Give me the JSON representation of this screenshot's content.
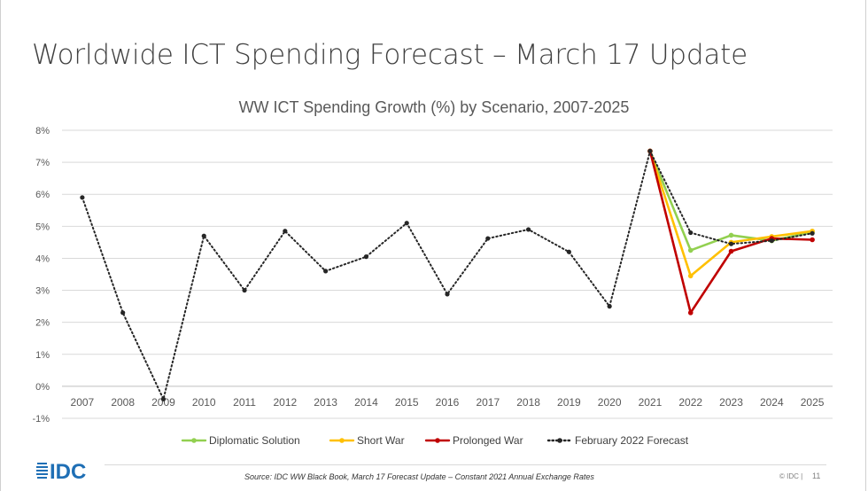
{
  "slide": {
    "title": "Worldwide ICT Spending Forecast – March 17 Update",
    "source": "Source: IDC WW Black Book, March 17 Forecast Update – Constant 2021 Annual Exchange Rates",
    "copyright": "© IDC |",
    "page_number": "11",
    "logo_text": "IDC"
  },
  "chart_data": {
    "type": "line",
    "title": "WW ICT Spending Growth (%) by Scenario, 2007-2025",
    "xlabel": "",
    "ylabel": "",
    "ylim": [
      -1,
      8
    ],
    "yticks": [
      "-1%",
      "0%",
      "1%",
      "2%",
      "3%",
      "4%",
      "5%",
      "6%",
      "7%",
      "8%"
    ],
    "ytick_values": [
      -1,
      0,
      1,
      2,
      3,
      4,
      5,
      6,
      7,
      8
    ],
    "categories": [
      "2007",
      "2008",
      "2009",
      "2010",
      "2011",
      "2012",
      "2013",
      "2014",
      "2015",
      "2016",
      "2017",
      "2018",
      "2019",
      "2020",
      "2021",
      "2022",
      "2023",
      "2024",
      "2025"
    ],
    "grid": true,
    "legend_position": "bottom",
    "series": [
      {
        "name": "Diplomatic Solution",
        "color": "#92d050",
        "style": "solid",
        "values": [
          null,
          null,
          null,
          null,
          null,
          null,
          null,
          null,
          null,
          null,
          null,
          null,
          null,
          null,
          7.35,
          4.25,
          4.72,
          4.55,
          4.82
        ]
      },
      {
        "name": "Short War",
        "color": "#ffc000",
        "style": "solid",
        "values": [
          null,
          null,
          null,
          null,
          null,
          null,
          null,
          null,
          null,
          null,
          null,
          null,
          null,
          null,
          7.35,
          3.45,
          4.5,
          4.68,
          4.85
        ]
      },
      {
        "name": "Prolonged War",
        "color": "#c00000",
        "style": "solid",
        "values": [
          null,
          null,
          null,
          null,
          null,
          null,
          null,
          null,
          null,
          null,
          null,
          null,
          null,
          null,
          7.35,
          2.3,
          4.22,
          4.62,
          4.58
        ]
      },
      {
        "name": "February 2022 Forecast",
        "color": "#262626",
        "style": "dotted",
        "values": [
          5.9,
          2.3,
          -0.4,
          4.7,
          3.0,
          4.85,
          3.6,
          4.05,
          5.1,
          2.88,
          4.62,
          4.9,
          4.2,
          2.5,
          7.35,
          4.8,
          4.45,
          4.55,
          4.78
        ]
      }
    ]
  }
}
